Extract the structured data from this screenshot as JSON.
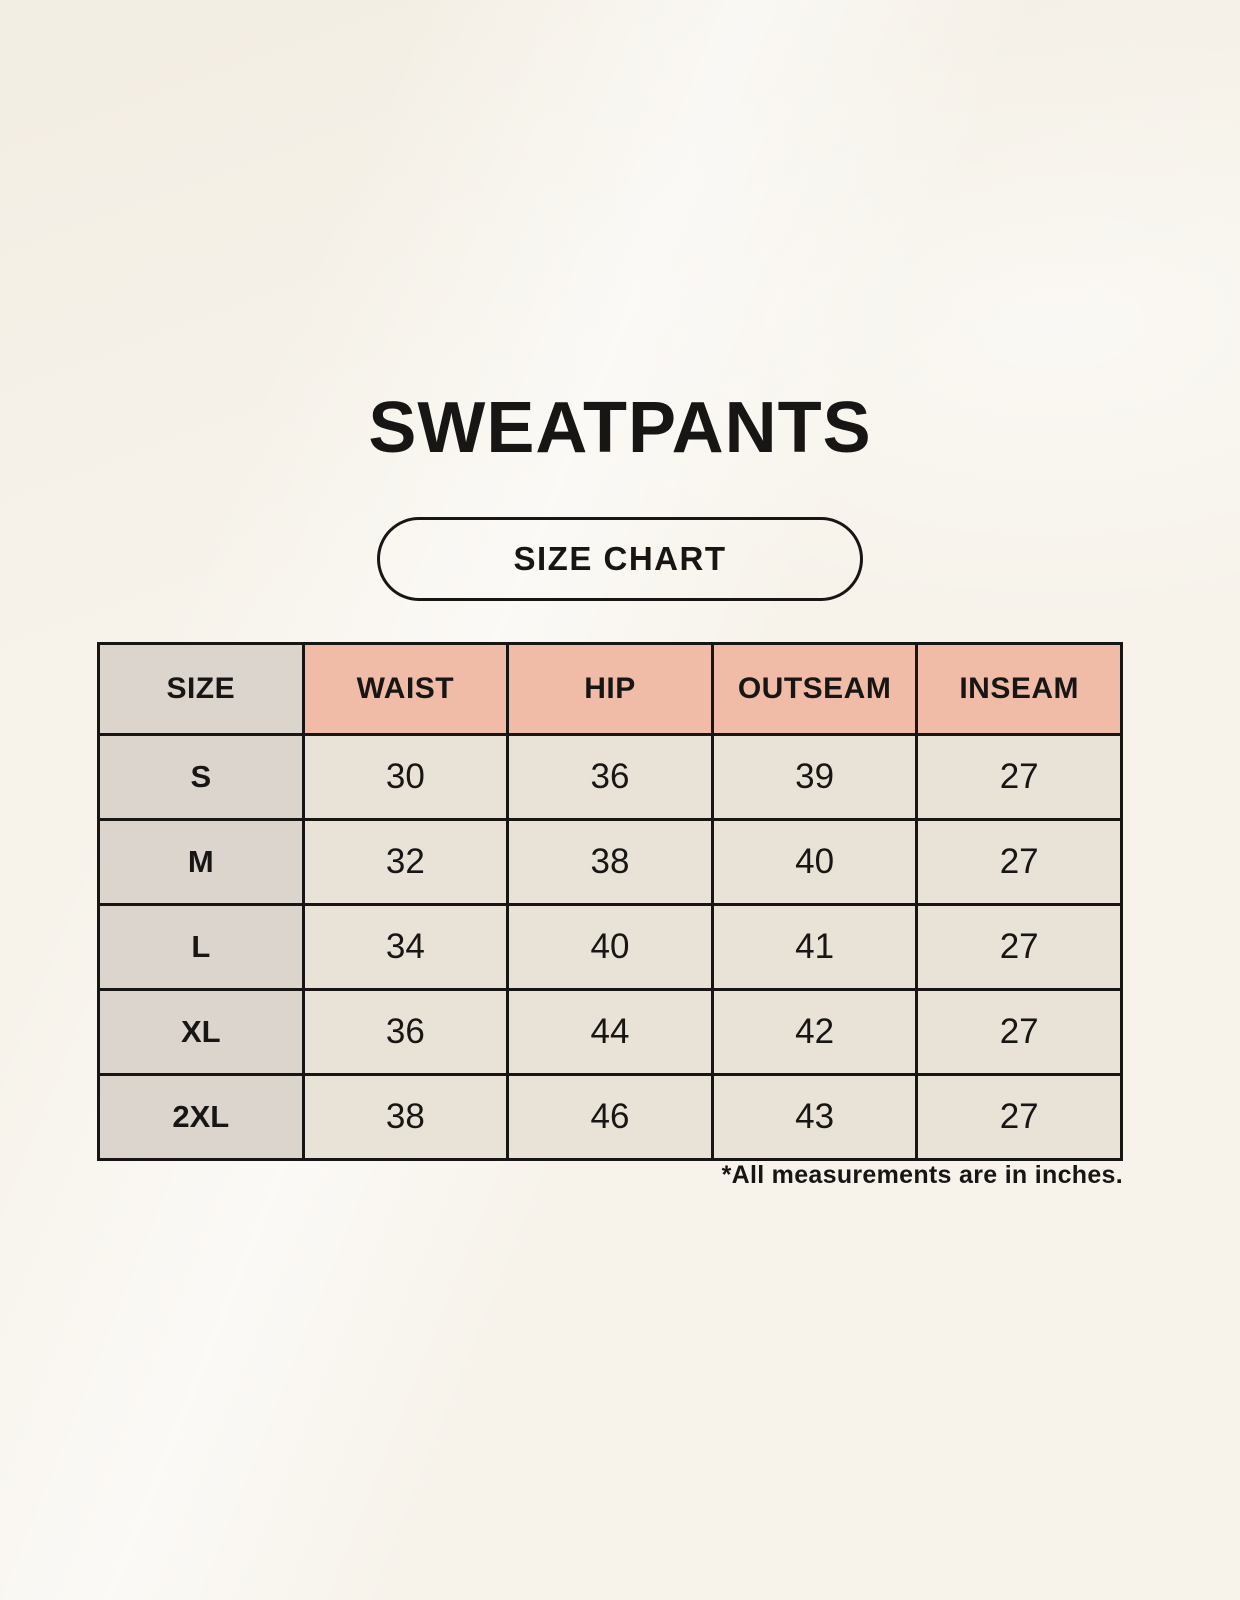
{
  "chart_data": {
    "type": "table",
    "title": "SWEATPANTS",
    "subtitle": "SIZE CHART",
    "columns": [
      "SIZE",
      "WAIST",
      "HIP",
      "OUTSEAM",
      "INSEAM"
    ],
    "rows": [
      [
        "S",
        "30",
        "36",
        "39",
        "27"
      ],
      [
        "M",
        "32",
        "38",
        "40",
        "27"
      ],
      [
        "L",
        "34",
        "40",
        "41",
        "27"
      ],
      [
        "XL",
        "36",
        "44",
        "42",
        "27"
      ],
      [
        "2XL",
        "38",
        "46",
        "43",
        "27"
      ]
    ],
    "units": "inches",
    "note": "*All measurements are in inches."
  },
  "colors": {
    "background": "#F7F3EB",
    "header_accent": "#F0BCA8",
    "size_column": "#DBD5CE",
    "cell": "#E9E2D6",
    "border": "#181614",
    "text": "#181614"
  }
}
